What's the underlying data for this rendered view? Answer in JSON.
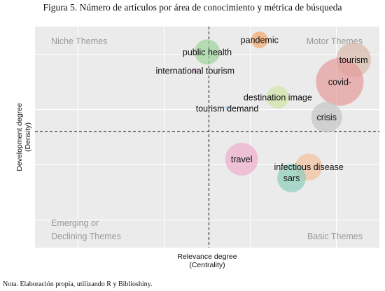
{
  "figure": {
    "title": "Figura 5. Número de artículos por área de conocimiento y métrica de búsqueda",
    "note": "Nota. Elaboración propia, utilizando R y Biblioshiny."
  },
  "chart_data": {
    "type": "scatter",
    "title": "",
    "xlabel": "Relevance degree",
    "xlabel_sub": "(Centrality)",
    "ylabel": "Development degree",
    "ylabel_sub": "(Density)",
    "xlim": [
      0,
      1
    ],
    "ylim": [
      0,
      1
    ],
    "grid": true,
    "reference_lines": {
      "x": 0.505,
      "y": 0.525
    },
    "quadrants": {
      "top_left": [
        "Niche Themes"
      ],
      "top_right": [
        "Motor Themes"
      ],
      "bottom_left": [
        "Emerging or",
        "Declining Themes"
      ],
      "bottom_right": [
        "Basic Themes"
      ]
    },
    "points": [
      {
        "label": "public health",
        "x": 0.5,
        "y": 0.885,
        "size": 0.22,
        "color": "#9ed49a"
      },
      {
        "label": "pandemic",
        "x": 0.652,
        "y": 0.94,
        "size": 0.07,
        "color": "#f4a86a"
      },
      {
        "label": "international tourism",
        "x": 0.465,
        "y": 0.8,
        "size": 0.0,
        "color": "#d3a5c8"
      },
      {
        "label": "destination image",
        "x": 0.705,
        "y": 0.68,
        "size": 0.16,
        "color": "#cfe6a4"
      },
      {
        "label": "tourism demand",
        "x": 0.558,
        "y": 0.63,
        "size": 0.0,
        "color": "#b7d3ea"
      },
      {
        "label": "tourism",
        "x": 0.925,
        "y": 0.85,
        "size": 0.48,
        "color": "#d8b9a9"
      },
      {
        "label": "covid-",
        "x": 0.885,
        "y": 0.75,
        "size": 1.0,
        "color": "#e59a9a"
      },
      {
        "label": "crisis",
        "x": 0.847,
        "y": 0.59,
        "size": 0.36,
        "color": "#c4c4c4"
      },
      {
        "label": "travel",
        "x": 0.6,
        "y": 0.4,
        "size": 0.42,
        "color": "#eeaecd"
      },
      {
        "label": "infectious disease",
        "x": 0.795,
        "y": 0.365,
        "size": 0.26,
        "color": "#f4c09d"
      },
      {
        "label": "sars",
        "x": 0.745,
        "y": 0.315,
        "size": 0.3,
        "color": "#8ccdbb"
      }
    ]
  }
}
